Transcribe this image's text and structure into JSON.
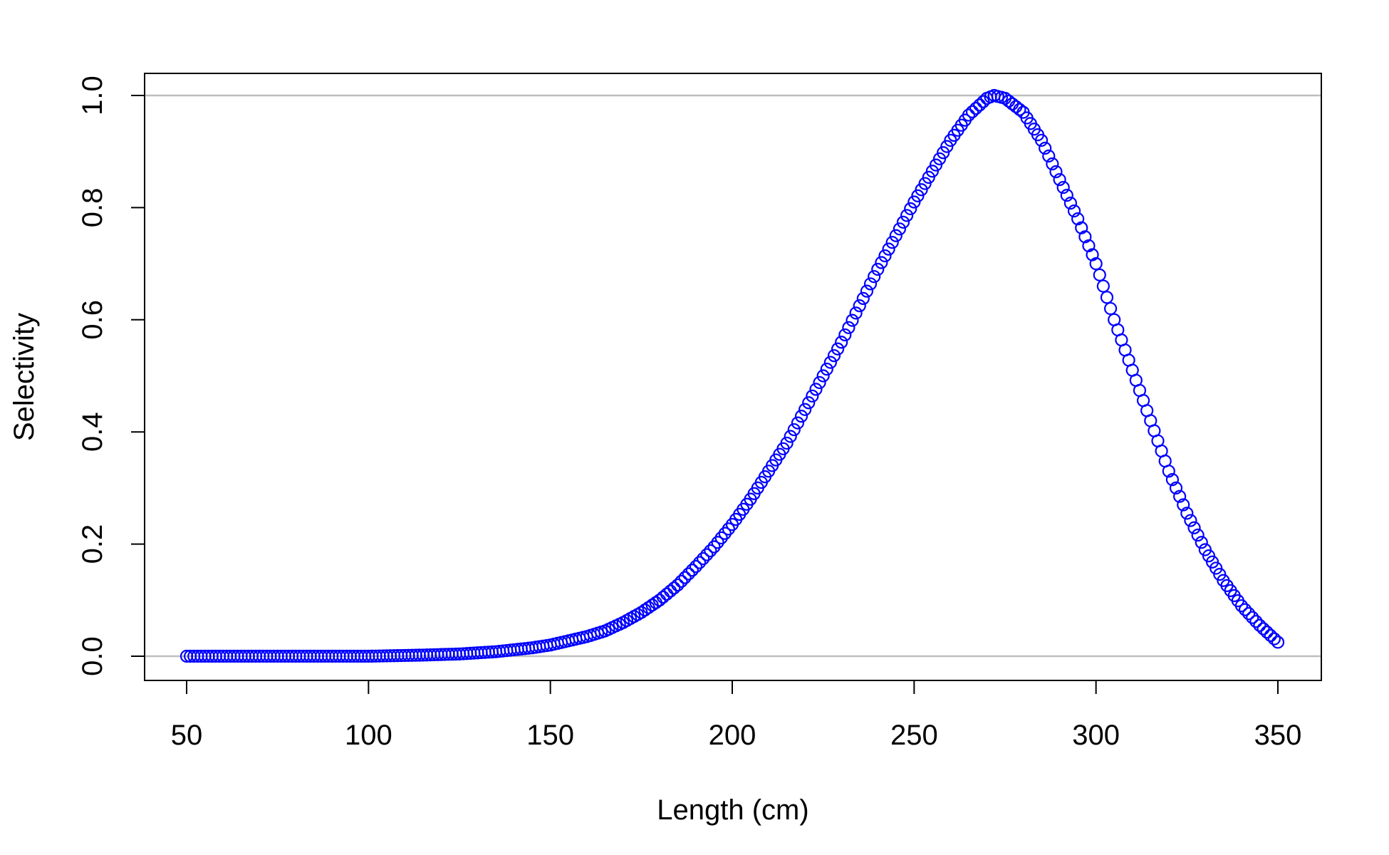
{
  "chart_data": {
    "type": "scatter",
    "title": "",
    "xlabel": "Length (cm)",
    "ylabel": "Selectivity",
    "xlim": [
      50,
      350
    ],
    "ylim": [
      0,
      1
    ],
    "x_ticks": [
      "50",
      "100",
      "150",
      "200",
      "250",
      "300",
      "350"
    ],
    "y_ticks": [
      "0.0",
      "0.2",
      "0.4",
      "0.6",
      "0.8",
      "1.0"
    ],
    "x_tick_values": [
      50,
      100,
      150,
      200,
      250,
      300,
      350
    ],
    "y_tick_values": [
      0.0,
      0.2,
      0.4,
      0.6,
      0.8,
      1.0
    ],
    "reference_lines_y": [
      0.0,
      1.0
    ],
    "grid": false,
    "legend": "none",
    "marker": "open-circle",
    "colors": {
      "points": "#0000ff",
      "reference_lines": "#bebebe",
      "axes": "#000000"
    },
    "series": [
      {
        "x": [
          50,
          100,
          115,
          125,
          135,
          145,
          150,
          160,
          165,
          170,
          175,
          180,
          185,
          190,
          195,
          200,
          205,
          210,
          215,
          220,
          225,
          230,
          235,
          240,
          245,
          250,
          255,
          260,
          265,
          270,
          272,
          275,
          280,
          285,
          290,
          295,
          300,
          305,
          310,
          315,
          320,
          325,
          330,
          335,
          340,
          345,
          350
        ],
        "y": [
          0.0,
          0.0,
          0.002,
          0.004,
          0.008,
          0.015,
          0.02,
          0.035,
          0.045,
          0.06,
          0.078,
          0.1,
          0.127,
          0.16,
          0.195,
          0.235,
          0.28,
          0.33,
          0.38,
          0.44,
          0.5,
          0.56,
          0.625,
          0.69,
          0.75,
          0.81,
          0.865,
          0.92,
          0.965,
          0.995,
          1.0,
          0.995,
          0.97,
          0.92,
          0.85,
          0.78,
          0.7,
          0.6,
          0.51,
          0.42,
          0.33,
          0.255,
          0.19,
          0.135,
          0.09,
          0.055,
          0.025
        ]
      }
    ]
  }
}
